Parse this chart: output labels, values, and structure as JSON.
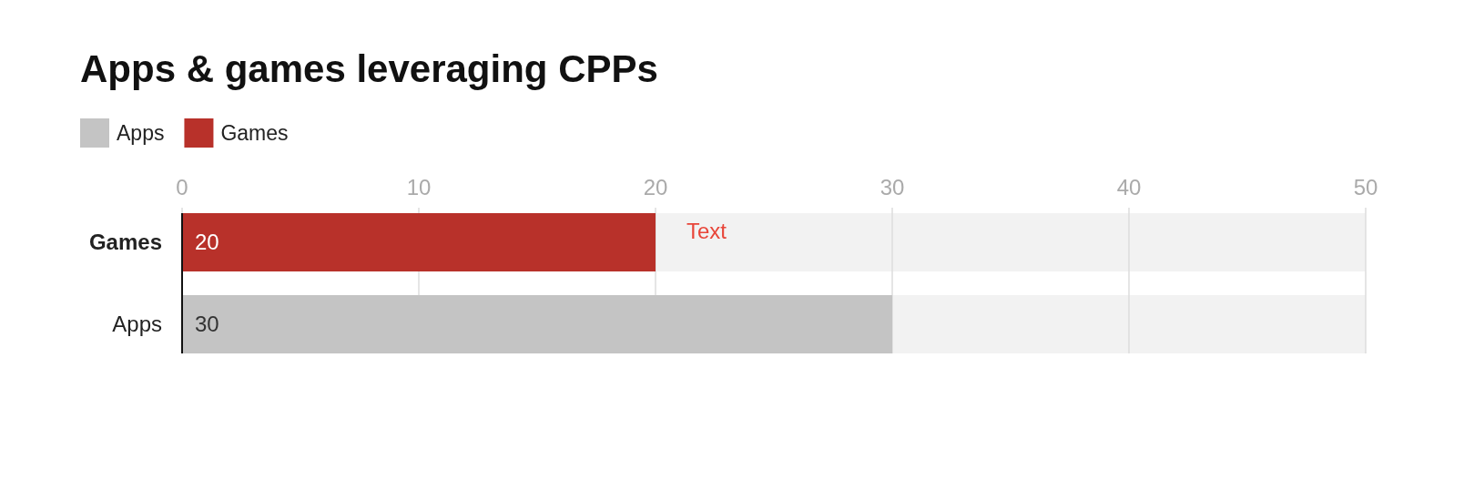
{
  "chart_data": {
    "type": "bar",
    "orientation": "horizontal",
    "title": "Apps & games leveraging CPPs",
    "categories": [
      "Games",
      "Apps"
    ],
    "series": [
      {
        "name": "Apps",
        "color": "#c4c4c4",
        "values": [
          null,
          30
        ]
      },
      {
        "name": "Games",
        "color": "#b8312a",
        "values": [
          20,
          null
        ]
      }
    ],
    "xlim": [
      0,
      50
    ],
    "xticks": [
      0,
      10,
      20,
      30,
      40,
      50
    ],
    "grid": "x",
    "legend": "top left",
    "data_labels": true,
    "annotations": [
      "Text"
    ]
  }
}
